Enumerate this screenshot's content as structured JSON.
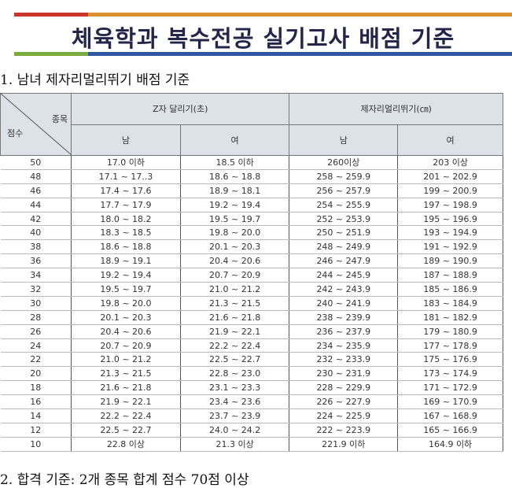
{
  "title": "체육학과 복수전공 실기고사 배점 기준",
  "colors": {
    "bar_top_left": "#c8372a",
    "bar_top_right": "#d9902b",
    "bar_bottom_left": "#7aab3d",
    "bar_bottom_right": "#2f56a0",
    "title": "#23254a"
  },
  "section1": "1. 남녀 제자리멀리뛰기 배점 기준",
  "table": {
    "corner_top": "종목",
    "corner_bottom": "점수",
    "groups": [
      "Z자 달리기(초)",
      "제자리멀리뛰기(㎝)"
    ],
    "subheaders": [
      "남",
      "여",
      "남",
      "여"
    ],
    "rows": [
      [
        "50",
        "17.0 이하",
        "18.5 이하",
        "260이상",
        "203 이상"
      ],
      [
        "48",
        "17.1 ~ 17..3",
        "18.6 ~ 18.8",
        "258 ~ 259.9",
        "201 ~ 202.9"
      ],
      [
        "46",
        "17.4 ~ 17.6",
        "18.9 ~ 18.1",
        "256 ~ 257.9",
        "199 ~ 200.9"
      ],
      [
        "44",
        "17.7 ~ 17.9",
        "19.2 ~ 19.4",
        "254 ~ 255.9",
        "197 ~ 198.9"
      ],
      [
        "42",
        "18.0 ~ 18.2",
        "19.5 ~ 19.7",
        "252 ~ 253.9",
        "195 ~ 196.9"
      ],
      [
        "40",
        "18.3 ~ 18.5",
        "19.8 ~ 20.0",
        "250 ~ 251.9",
        "193 ~ 194.9"
      ],
      [
        "38",
        "18.6 ~ 18.8",
        "20.1 ~ 20.3",
        "248 ~ 249.9",
        "191 ~ 192.9"
      ],
      [
        "36",
        "18.9 ~ 19.1",
        "20.4 ~ 20.6",
        "246 ~ 247.9",
        "189 ~ 190.9"
      ],
      [
        "34",
        "19.2 ~ 19.4",
        "20.7 ~ 20.9",
        "244 ~ 245.9",
        "187 ~ 188.9"
      ],
      [
        "32",
        "19.5 ~ 19.7",
        "21.0 ~ 21.2",
        "242 ~ 243.9",
        "185 ~ 186.9"
      ],
      [
        "30",
        "19.8 ~ 20.0",
        "21.3 ~ 21.5",
        "240 ~ 241.9",
        "183 ~ 184.9"
      ],
      [
        "28",
        "20.1 ~ 20.3",
        "21.6 ~ 21.8",
        "238 ~ 239.9",
        "181 ~ 182.9"
      ],
      [
        "26",
        "20.4 ~ 20.6",
        "21.9 ~ 22.1",
        "236 ~ 237.9",
        "179 ~ 180.9"
      ],
      [
        "24",
        "20.7 ~ 20.9",
        "22.2 ~ 22.4",
        "234 ~ 235.9",
        "177 ~ 178.9"
      ],
      [
        "22",
        "21.0 ~ 21.2",
        "22.5 ~ 22.7",
        "232 ~ 233.9",
        "175 ~ 176.9"
      ],
      [
        "20",
        "21.3 ~ 21.5",
        "22.8 ~ 23.0",
        "230 ~ 231.9",
        "173 ~ 174.9"
      ],
      [
        "18",
        "21.6 ~ 21.8",
        "23.1 ~ 23.3",
        "228 ~ 229.9",
        "171 ~ 172.9"
      ],
      [
        "16",
        "21.9 ~ 22.1",
        "23.4 ~ 23.6",
        "226 ~ 227.9",
        "169 ~ 170.9"
      ],
      [
        "14",
        "22.2 ~ 22.4",
        "23.7 ~ 23.9",
        "224 ~ 225.9",
        "167 ~ 168.9"
      ],
      [
        "12",
        "22.5 ~ 22.7",
        "24.0 ~ 24.2",
        "222 ~ 223.9",
        "165 ~ 166.9"
      ],
      [
        "10",
        "22.8 이상",
        "21.3 이상",
        "221.9 이하",
        "164.9 이하"
      ]
    ]
  },
  "section2": "2. 합격 기준: 2개 종목 합계 점수 70점 이상"
}
